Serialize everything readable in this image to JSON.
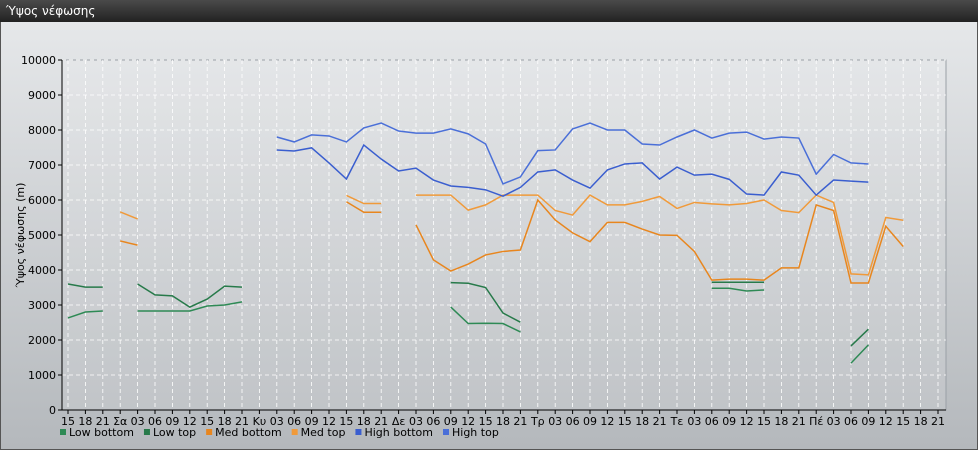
{
  "chart_data": {
    "type": "line",
    "title": "Ύψος νέφωσης",
    "y_label": "Ύψος νέφωσης (m)",
    "categories": [
      "15",
      "18",
      "21",
      "Σα",
      "03",
      "06",
      "09",
      "12",
      "15",
      "18",
      "21",
      "Κυ",
      "03",
      "06",
      "09",
      "12",
      "15",
      "18",
      "21",
      "Δε",
      "03",
      "06",
      "09",
      "12",
      "15",
      "18",
      "21",
      "Τρ",
      "03",
      "06",
      "09",
      "12",
      "15",
      "18",
      "21",
      "Τε",
      "03",
      "06",
      "09",
      "12",
      "15",
      "18",
      "21",
      "Πέ",
      "03",
      "06",
      "09",
      "12",
      "15",
      "18",
      "21"
    ],
    "ylim": [
      0,
      10000
    ],
    "yticks": [
      0,
      1000,
      2000,
      3000,
      4000,
      5000,
      6000,
      7000,
      8000,
      9000,
      10000
    ],
    "grid": true,
    "series": [
      {
        "name": "Low bottom",
        "color": "#2e8a55",
        "values": [
          2630,
          2800,
          2830,
          null,
          2830,
          2830,
          2830,
          2830,
          2970,
          3000,
          3090,
          null,
          null,
          null,
          null,
          null,
          null,
          null,
          null,
          null,
          null,
          null,
          2940,
          2470,
          2480,
          2470,
          2230,
          null,
          null,
          null,
          null,
          null,
          null,
          null,
          null,
          null,
          null,
          3480,
          3480,
          3400,
          3430,
          null,
          null,
          null,
          null,
          1340,
          1860,
          null,
          null,
          null,
          null
        ]
      },
      {
        "name": "Low top",
        "color": "#277a4a",
        "values": [
          3600,
          3510,
          3510,
          null,
          3600,
          3290,
          3260,
          2940,
          3170,
          3540,
          3510,
          null,
          null,
          null,
          null,
          null,
          null,
          null,
          null,
          null,
          null,
          null,
          3640,
          3620,
          3500,
          2770,
          2510,
          null,
          null,
          null,
          null,
          null,
          null,
          null,
          null,
          null,
          null,
          3650,
          3650,
          3650,
          3650,
          null,
          null,
          null,
          null,
          1830,
          2310,
          null,
          null,
          null,
          null
        ]
      },
      {
        "name": "Med bottom",
        "color": "#e8861e",
        "values": [
          null,
          null,
          null,
          4830,
          4710,
          null,
          null,
          null,
          null,
          null,
          null,
          null,
          null,
          null,
          null,
          null,
          5950,
          5650,
          5650,
          null,
          5290,
          4290,
          3970,
          4170,
          4430,
          4530,
          4570,
          6000,
          5430,
          5060,
          4810,
          5360,
          5360,
          5170,
          5000,
          4990,
          4530,
          3710,
          3740,
          3740,
          3710,
          4060,
          4060,
          5860,
          5700,
          3630,
          3630,
          5250,
          4670,
          null,
          null
        ]
      },
      {
        "name": "Med top",
        "color": "#f09a3a",
        "values": [
          null,
          null,
          null,
          5660,
          5460,
          null,
          null,
          null,
          null,
          null,
          null,
          null,
          null,
          null,
          null,
          null,
          6130,
          5900,
          5900,
          null,
          6140,
          6140,
          6140,
          5710,
          5860,
          6140,
          6140,
          6140,
          5700,
          5570,
          6140,
          5860,
          5860,
          5960,
          6100,
          5760,
          5930,
          5890,
          5860,
          5900,
          6000,
          5700,
          5640,
          6140,
          5930,
          3890,
          3860,
          5500,
          5420,
          null,
          null
        ]
      },
      {
        "name": "High bottom",
        "color": "#3a5ecf",
        "values": [
          null,
          null,
          null,
          null,
          null,
          null,
          null,
          null,
          null,
          null,
          null,
          null,
          7430,
          7400,
          7490,
          7060,
          6600,
          7570,
          7170,
          6830,
          6910,
          6570,
          6400,
          6360,
          6290,
          6110,
          6360,
          6800,
          6860,
          6570,
          6340,
          6860,
          7030,
          7060,
          6600,
          6940,
          6710,
          6740,
          6590,
          6170,
          6140,
          6800,
          6710,
          6140,
          6570,
          6540,
          6510,
          null,
          null,
          null,
          null
        ]
      },
      {
        "name": "High top",
        "color": "#4a6fd8",
        "values": [
          null,
          null,
          null,
          null,
          null,
          null,
          null,
          null,
          null,
          null,
          null,
          null,
          7800,
          7660,
          7860,
          7830,
          7660,
          8060,
          8200,
          7970,
          7910,
          7910,
          8030,
          7890,
          7600,
          6460,
          6660,
          7410,
          7430,
          8030,
          8200,
          8000,
          8000,
          7600,
          7570,
          7800,
          8000,
          7770,
          7910,
          7940,
          7740,
          7800,
          7770,
          6740,
          7300,
          7060,
          7030,
          null,
          null,
          null,
          null
        ]
      }
    ]
  }
}
